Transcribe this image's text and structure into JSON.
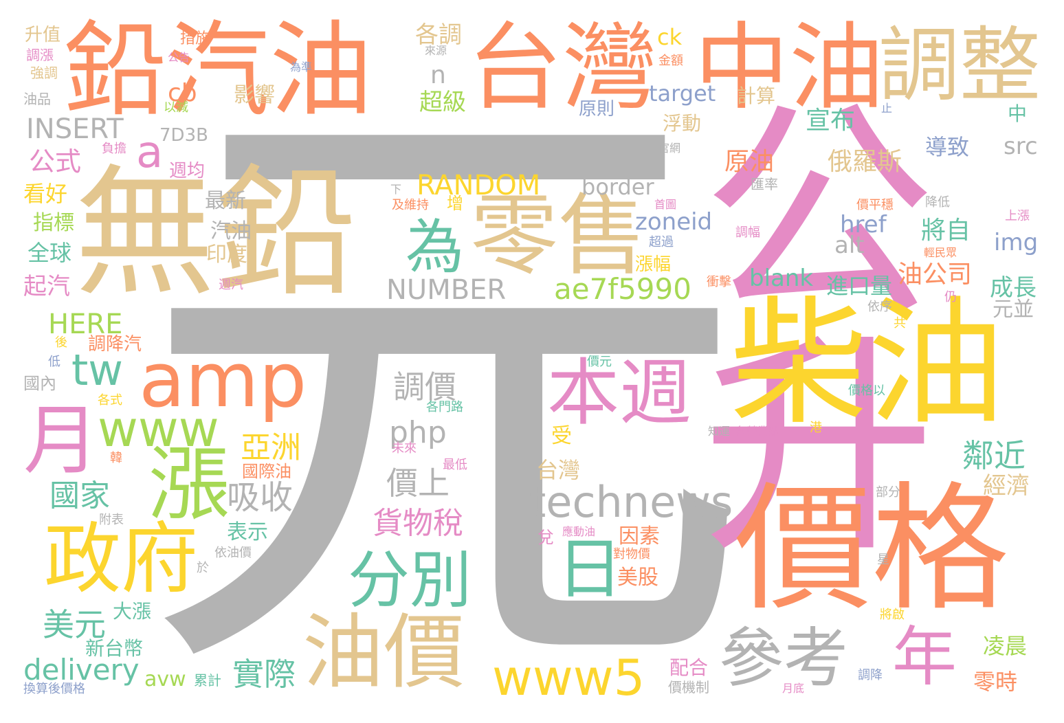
{
  "palette": {
    "gray": "#b3b3b3",
    "pink": "#e58bc5",
    "yellow": "#fcd52e",
    "orange": "#fb8f62",
    "tan": "#e3c68f",
    "green": "#66c2a5",
    "lime": "#a6d854",
    "blue": "#8da0cb",
    "background": "#ffffff"
  },
  "words": [
    {
      "text": "元",
      "color": "gray"
    },
    {
      "text": "公升",
      "color": "pink"
    },
    {
      "text": "無鉛",
      "color": "tan"
    },
    {
      "text": "價格",
      "color": "orange"
    },
    {
      "text": "鉛汽油",
      "color": "orange"
    },
    {
      "text": "台灣",
      "color": "orange"
    },
    {
      "text": "中油",
      "color": "orange"
    },
    {
      "text": "調整",
      "color": "tan"
    },
    {
      "text": "柴油",
      "color": "yellow"
    },
    {
      "text": "零售",
      "color": "tan"
    },
    {
      "text": "amp",
      "color": "orange"
    },
    {
      "text": "本週",
      "color": "pink"
    },
    {
      "text": "油價",
      "color": "tan"
    },
    {
      "text": "政府",
      "color": "yellow"
    },
    {
      "text": "月",
      "color": "pink"
    },
    {
      "text": "漲",
      "color": "lime"
    },
    {
      "text": "為",
      "color": "green"
    },
    {
      "text": "www",
      "color": "lime"
    },
    {
      "text": "technews",
      "color": "gray"
    },
    {
      "text": "分別",
      "color": "green"
    },
    {
      "text": "參考",
      "color": "gray"
    },
    {
      "text": "年",
      "color": "pink"
    },
    {
      "text": "日",
      "color": "green"
    },
    {
      "text": "www5",
      "color": "yellow"
    },
    {
      "text": "ae7f5990",
      "color": "lime"
    },
    {
      "text": "tw",
      "color": "green"
    },
    {
      "text": "NUMBER",
      "color": "gray"
    },
    {
      "text": "RANDOM",
      "color": "yellow"
    },
    {
      "text": "INSERT",
      "color": "gray"
    },
    {
      "text": "a",
      "color": "pink"
    },
    {
      "text": "delivery",
      "color": "green"
    },
    {
      "text": "HERE",
      "color": "lime"
    },
    {
      "text": "吸收",
      "color": "gray"
    },
    {
      "text": "國家",
      "color": "green"
    },
    {
      "text": "調價",
      "color": "gray"
    },
    {
      "text": "亞洲",
      "color": "yellow"
    },
    {
      "text": "價上",
      "color": "gray"
    },
    {
      "text": "php",
      "color": "gray"
    },
    {
      "text": "貨物稅",
      "color": "pink"
    },
    {
      "text": "實際",
      "color": "green"
    },
    {
      "text": "美元",
      "color": "green"
    },
    {
      "text": "鄰近",
      "color": "green"
    },
    {
      "text": "俄羅斯",
      "color": "tan"
    },
    {
      "text": "原油",
      "color": "orange"
    },
    {
      "text": "宣布",
      "color": "green"
    },
    {
      "text": "導致",
      "color": "blue"
    },
    {
      "text": "src",
      "color": "gray"
    },
    {
      "text": "img",
      "color": "blue"
    },
    {
      "text": "href",
      "color": "blue"
    },
    {
      "text": "將自",
      "color": "green"
    },
    {
      "text": "alt",
      "color": "gray"
    },
    {
      "text": "油公司",
      "color": "orange"
    },
    {
      "text": "blank",
      "color": "green"
    },
    {
      "text": "進口量",
      "color": "green"
    },
    {
      "text": "成長",
      "color": "green"
    },
    {
      "text": "元並",
      "color": "gray"
    },
    {
      "text": "zoneid",
      "color": "blue"
    },
    {
      "text": "border",
      "color": "gray"
    },
    {
      "text": "target",
      "color": "blue"
    },
    {
      "text": "ck",
      "color": "yellow"
    },
    {
      "text": "計算",
      "color": "tan"
    },
    {
      "text": "原則",
      "color": "blue"
    },
    {
      "text": "浮動",
      "color": "tan"
    },
    {
      "text": "cb",
      "color": "orange"
    },
    {
      "text": "影響",
      "color": "tan"
    },
    {
      "text": "超級",
      "color": "lime"
    },
    {
      "text": "n",
      "color": "gray"
    },
    {
      "text": "各調",
      "color": "tan"
    },
    {
      "text": "公式",
      "color": "pink"
    },
    {
      "text": "7D3B",
      "color": "gray"
    },
    {
      "text": "週均",
      "color": "pink"
    },
    {
      "text": "最新",
      "color": "gray"
    },
    {
      "text": "汽油",
      "color": "gray"
    },
    {
      "text": "印度",
      "color": "tan"
    },
    {
      "text": "看好",
      "color": "yellow"
    },
    {
      "text": "指標",
      "color": "lime"
    },
    {
      "text": "全球",
      "color": "green"
    },
    {
      "text": "起汽",
      "color": "pink"
    },
    {
      "text": "調降汽",
      "color": "orange"
    },
    {
      "text": "表示",
      "color": "green"
    },
    {
      "text": "新台幣",
      "color": "green"
    },
    {
      "text": "大漲",
      "color": "green"
    },
    {
      "text": "avw",
      "color": "lime"
    },
    {
      "text": "累計",
      "color": "green"
    },
    {
      "text": "配合",
      "color": "pink"
    },
    {
      "text": "價機制",
      "color": "gray"
    },
    {
      "text": "凌晨",
      "color": "lime"
    },
    {
      "text": "零時",
      "color": "orange"
    },
    {
      "text": "經濟",
      "color": "tan"
    },
    {
      "text": "美股",
      "color": "orange"
    },
    {
      "text": "因素",
      "color": "orange"
    },
    {
      "text": "漲幅",
      "color": "yellow"
    },
    {
      "text": "台灣",
      "color": "tan"
    },
    {
      "text": "受",
      "color": "yellow"
    },
    {
      "text": "國際油",
      "color": "orange"
    },
    {
      "text": "升值",
      "color": "tan"
    },
    {
      "text": "調漲",
      "color": "pink"
    },
    {
      "text": "強調",
      "color": "tan"
    },
    {
      "text": "油品",
      "color": "gray"
    },
    {
      "text": "措施",
      "color": "orange"
    },
    {
      "text": "公告",
      "color": "pink"
    },
    {
      "text": "以減",
      "color": "lime"
    },
    {
      "text": "負擔",
      "color": "pink"
    },
    {
      "text": "來源",
      "color": "gray"
    },
    {
      "text": "為準",
      "color": "blue"
    },
    {
      "text": "金額",
      "color": "orange"
    },
    {
      "text": "官網",
      "color": "gray"
    },
    {
      "text": "中",
      "color": "green"
    },
    {
      "text": "止",
      "color": "blue"
    },
    {
      "text": "匯率",
      "color": "gray"
    },
    {
      "text": "降低",
      "color": "gray"
    },
    {
      "text": "下",
      "color": "gray"
    },
    {
      "text": "及維持",
      "color": "orange"
    },
    {
      "text": "增",
      "color": "yellow"
    },
    {
      "text": "首圖",
      "color": "pink"
    },
    {
      "text": "價平穩",
      "color": "orange"
    },
    {
      "text": "上漲",
      "color": "pink"
    },
    {
      "text": "調幅",
      "color": "pink"
    },
    {
      "text": "超過",
      "color": "blue"
    },
    {
      "text": "輕民眾",
      "color": "orange"
    },
    {
      "text": "週汽",
      "color": "pink"
    },
    {
      "text": "衝擊",
      "color": "orange"
    },
    {
      "text": "依序",
      "color": "gray"
    },
    {
      "text": "仍",
      "color": "pink"
    },
    {
      "text": "共",
      "color": "yellow"
    },
    {
      "text": "後",
      "color": "yellow"
    },
    {
      "text": "低",
      "color": "blue"
    },
    {
      "text": "國內",
      "color": "gray"
    },
    {
      "text": "各式",
      "color": "yellow"
    },
    {
      "text": "各門路",
      "color": "green"
    },
    {
      "text": "價元",
      "color": "green"
    },
    {
      "text": "價格以",
      "color": "green"
    },
    {
      "text": "未來",
      "color": "pink"
    },
    {
      "text": "韓",
      "color": "orange"
    },
    {
      "text": "最低",
      "color": "pink"
    },
    {
      "text": "知運",
      "color": "gray"
    },
    {
      "text": "各營業點",
      "color": "pink"
    },
    {
      "text": "港",
      "color": "yellow"
    },
    {
      "text": "附表",
      "color": "gray"
    },
    {
      "text": "依油價",
      "color": "gray"
    },
    {
      "text": "應動油",
      "color": "pink"
    },
    {
      "text": "兌",
      "color": "pink"
    },
    {
      "text": "對物價",
      "color": "orange"
    },
    {
      "text": "部分",
      "color": "gray"
    },
    {
      "text": "於",
      "color": "gray"
    },
    {
      "text": "星",
      "color": "gray"
    },
    {
      "text": "將啟",
      "color": "yellow"
    },
    {
      "text": "換算後價格",
      "color": "blue"
    },
    {
      "text": "調降",
      "color": "blue"
    },
    {
      "text": "月底",
      "color": "pink"
    }
  ]
}
